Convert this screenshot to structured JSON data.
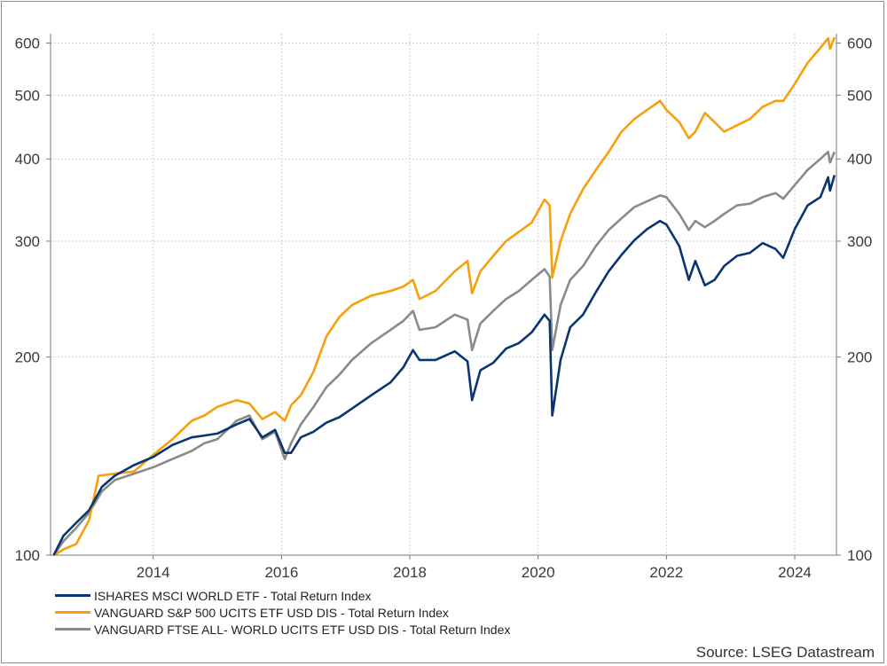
{
  "chart_data": {
    "type": "line",
    "y_scale": "log",
    "ylim": [
      100,
      620
    ],
    "xlim": [
      2012.4,
      2024.65
    ],
    "y_ticks": [
      100,
      200,
      300,
      400,
      500,
      600
    ],
    "y_tick_labels": [
      "100",
      "200",
      "300",
      "400",
      "500",
      "600"
    ],
    "x_ticks": [
      2014,
      2016,
      2018,
      2020,
      2022,
      2024
    ],
    "x_tick_labels": [
      "2014",
      "2016",
      "2018",
      "2020",
      "2022",
      "2024"
    ],
    "grid": true,
    "legend_position": "bottom-left",
    "colors": {
      "ishares": "#0a3570",
      "sp500": "#f5a00c",
      "ftse": "#8a8a8a",
      "axis": "#7a7a7a",
      "grid": "#cfcfcf"
    },
    "series": [
      {
        "name": "ISHARES MSCI WORLD ETF - Total Return Index",
        "color": "#0a3570",
        "x": [
          2012.45,
          2012.6,
          2012.8,
          2013.0,
          2013.2,
          2013.4,
          2013.7,
          2014.0,
          2014.3,
          2014.6,
          2014.8,
          2015.0,
          2015.3,
          2015.5,
          2015.7,
          2015.9,
          2016.05,
          2016.15,
          2016.3,
          2016.5,
          2016.7,
          2016.9,
          2017.1,
          2017.4,
          2017.7,
          2017.9,
          2018.05,
          2018.15,
          2018.4,
          2018.7,
          2018.9,
          2018.97,
          2019.1,
          2019.3,
          2019.5,
          2019.7,
          2019.9,
          2020.1,
          2020.18,
          2020.22,
          2020.35,
          2020.5,
          2020.7,
          2020.9,
          2021.1,
          2021.3,
          2021.5,
          2021.7,
          2021.9,
          2022.0,
          2022.2,
          2022.35,
          2022.45,
          2022.6,
          2022.75,
          2022.9,
          2023.1,
          2023.3,
          2023.5,
          2023.7,
          2023.82,
          2024.0,
          2024.2,
          2024.4,
          2024.52,
          2024.55,
          2024.62
        ],
        "values": [
          100,
          107,
          112,
          117,
          127,
          132,
          137,
          141,
          147,
          151,
          152,
          153,
          158,
          161,
          151,
          155,
          143,
          143,
          151,
          154,
          159,
          162,
          167,
          175,
          183,
          193,
          205,
          198,
          198,
          204,
          197,
          172,
          191,
          196,
          206,
          210,
          218,
          232,
          227,
          163,
          198,
          222,
          232,
          251,
          270,
          286,
          301,
          313,
          322,
          318,
          295,
          262,
          280,
          257,
          262,
          275,
          285,
          288,
          298,
          292,
          283,
          313,
          340,
          350,
          375,
          358,
          378
        ]
      },
      {
        "name": "VANGUARD S&P 500 UCITS ETF USD DIS - Total Return Index",
        "color": "#f5a00c",
        "x": [
          2012.45,
          2012.6,
          2012.8,
          2013.0,
          2013.15,
          2013.4,
          2013.7,
          2014.0,
          2014.3,
          2014.6,
          2014.8,
          2015.0,
          2015.3,
          2015.5,
          2015.7,
          2015.9,
          2016.05,
          2016.15,
          2016.3,
          2016.5,
          2016.7,
          2016.9,
          2017.1,
          2017.4,
          2017.7,
          2017.9,
          2018.05,
          2018.15,
          2018.4,
          2018.7,
          2018.9,
          2018.97,
          2019.1,
          2019.3,
          2019.5,
          2019.7,
          2019.9,
          2020.1,
          2020.18,
          2020.22,
          2020.35,
          2020.5,
          2020.7,
          2020.9,
          2021.1,
          2021.3,
          2021.5,
          2021.7,
          2021.9,
          2022.0,
          2022.2,
          2022.35,
          2022.45,
          2022.6,
          2022.75,
          2022.9,
          2023.1,
          2023.3,
          2023.5,
          2023.7,
          2023.82,
          2024.0,
          2024.2,
          2024.4,
          2024.52,
          2024.55,
          2024.62
        ],
        "values": [
          100,
          102,
          104,
          113,
          132,
          133,
          134,
          142,
          150,
          160,
          163,
          168,
          172,
          170,
          161,
          165,
          160,
          169,
          175,
          190,
          215,
          230,
          240,
          248,
          252,
          256,
          262,
          245,
          252,
          270,
          280,
          250,
          270,
          285,
          300,
          310,
          320,
          347,
          340,
          264,
          300,
          330,
          360,
          385,
          410,
          440,
          460,
          475,
          490,
          475,
          455,
          430,
          440,
          470,
          455,
          440,
          450,
          460,
          480,
          490,
          490,
          520,
          560,
          590,
          610,
          588,
          612
        ]
      },
      {
        "name": "VANGUARD FTSE ALL- WORLD UCITS ETF USD DIS - Total Return Index",
        "color": "#8a8a8a",
        "x": [
          2012.45,
          2012.6,
          2012.8,
          2013.0,
          2013.2,
          2013.4,
          2013.7,
          2014.0,
          2014.3,
          2014.6,
          2014.8,
          2015.0,
          2015.3,
          2015.5,
          2015.7,
          2015.9,
          2016.05,
          2016.15,
          2016.3,
          2016.5,
          2016.7,
          2016.9,
          2017.1,
          2017.4,
          2017.7,
          2017.9,
          2018.05,
          2018.15,
          2018.4,
          2018.7,
          2018.9,
          2018.97,
          2019.1,
          2019.3,
          2019.5,
          2019.7,
          2019.9,
          2020.1,
          2020.18,
          2020.22,
          2020.35,
          2020.5,
          2020.7,
          2020.9,
          2021.1,
          2021.3,
          2021.5,
          2021.7,
          2021.9,
          2022.0,
          2022.2,
          2022.35,
          2022.45,
          2022.6,
          2022.75,
          2022.9,
          2023.1,
          2023.3,
          2023.5,
          2023.7,
          2023.82,
          2024.0,
          2024.2,
          2024.4,
          2024.52,
          2024.55,
          2024.62
        ],
        "values": [
          100,
          105,
          110,
          116,
          125,
          130,
          133,
          136,
          140,
          144,
          148,
          150,
          160,
          163,
          150,
          154,
          140,
          148,
          158,
          168,
          180,
          188,
          198,
          210,
          220,
          227,
          235,
          220,
          222,
          232,
          228,
          205,
          225,
          235,
          245,
          252,
          262,
          272,
          265,
          205,
          240,
          262,
          275,
          295,
          312,
          325,
          338,
          345,
          352,
          350,
          330,
          312,
          322,
          315,
          322,
          330,
          340,
          342,
          350,
          355,
          348,
          365,
          385,
          400,
          410,
          395,
          410
        ]
      }
    ]
  },
  "footer": {
    "source": "Source: LSEG Datastream"
  }
}
